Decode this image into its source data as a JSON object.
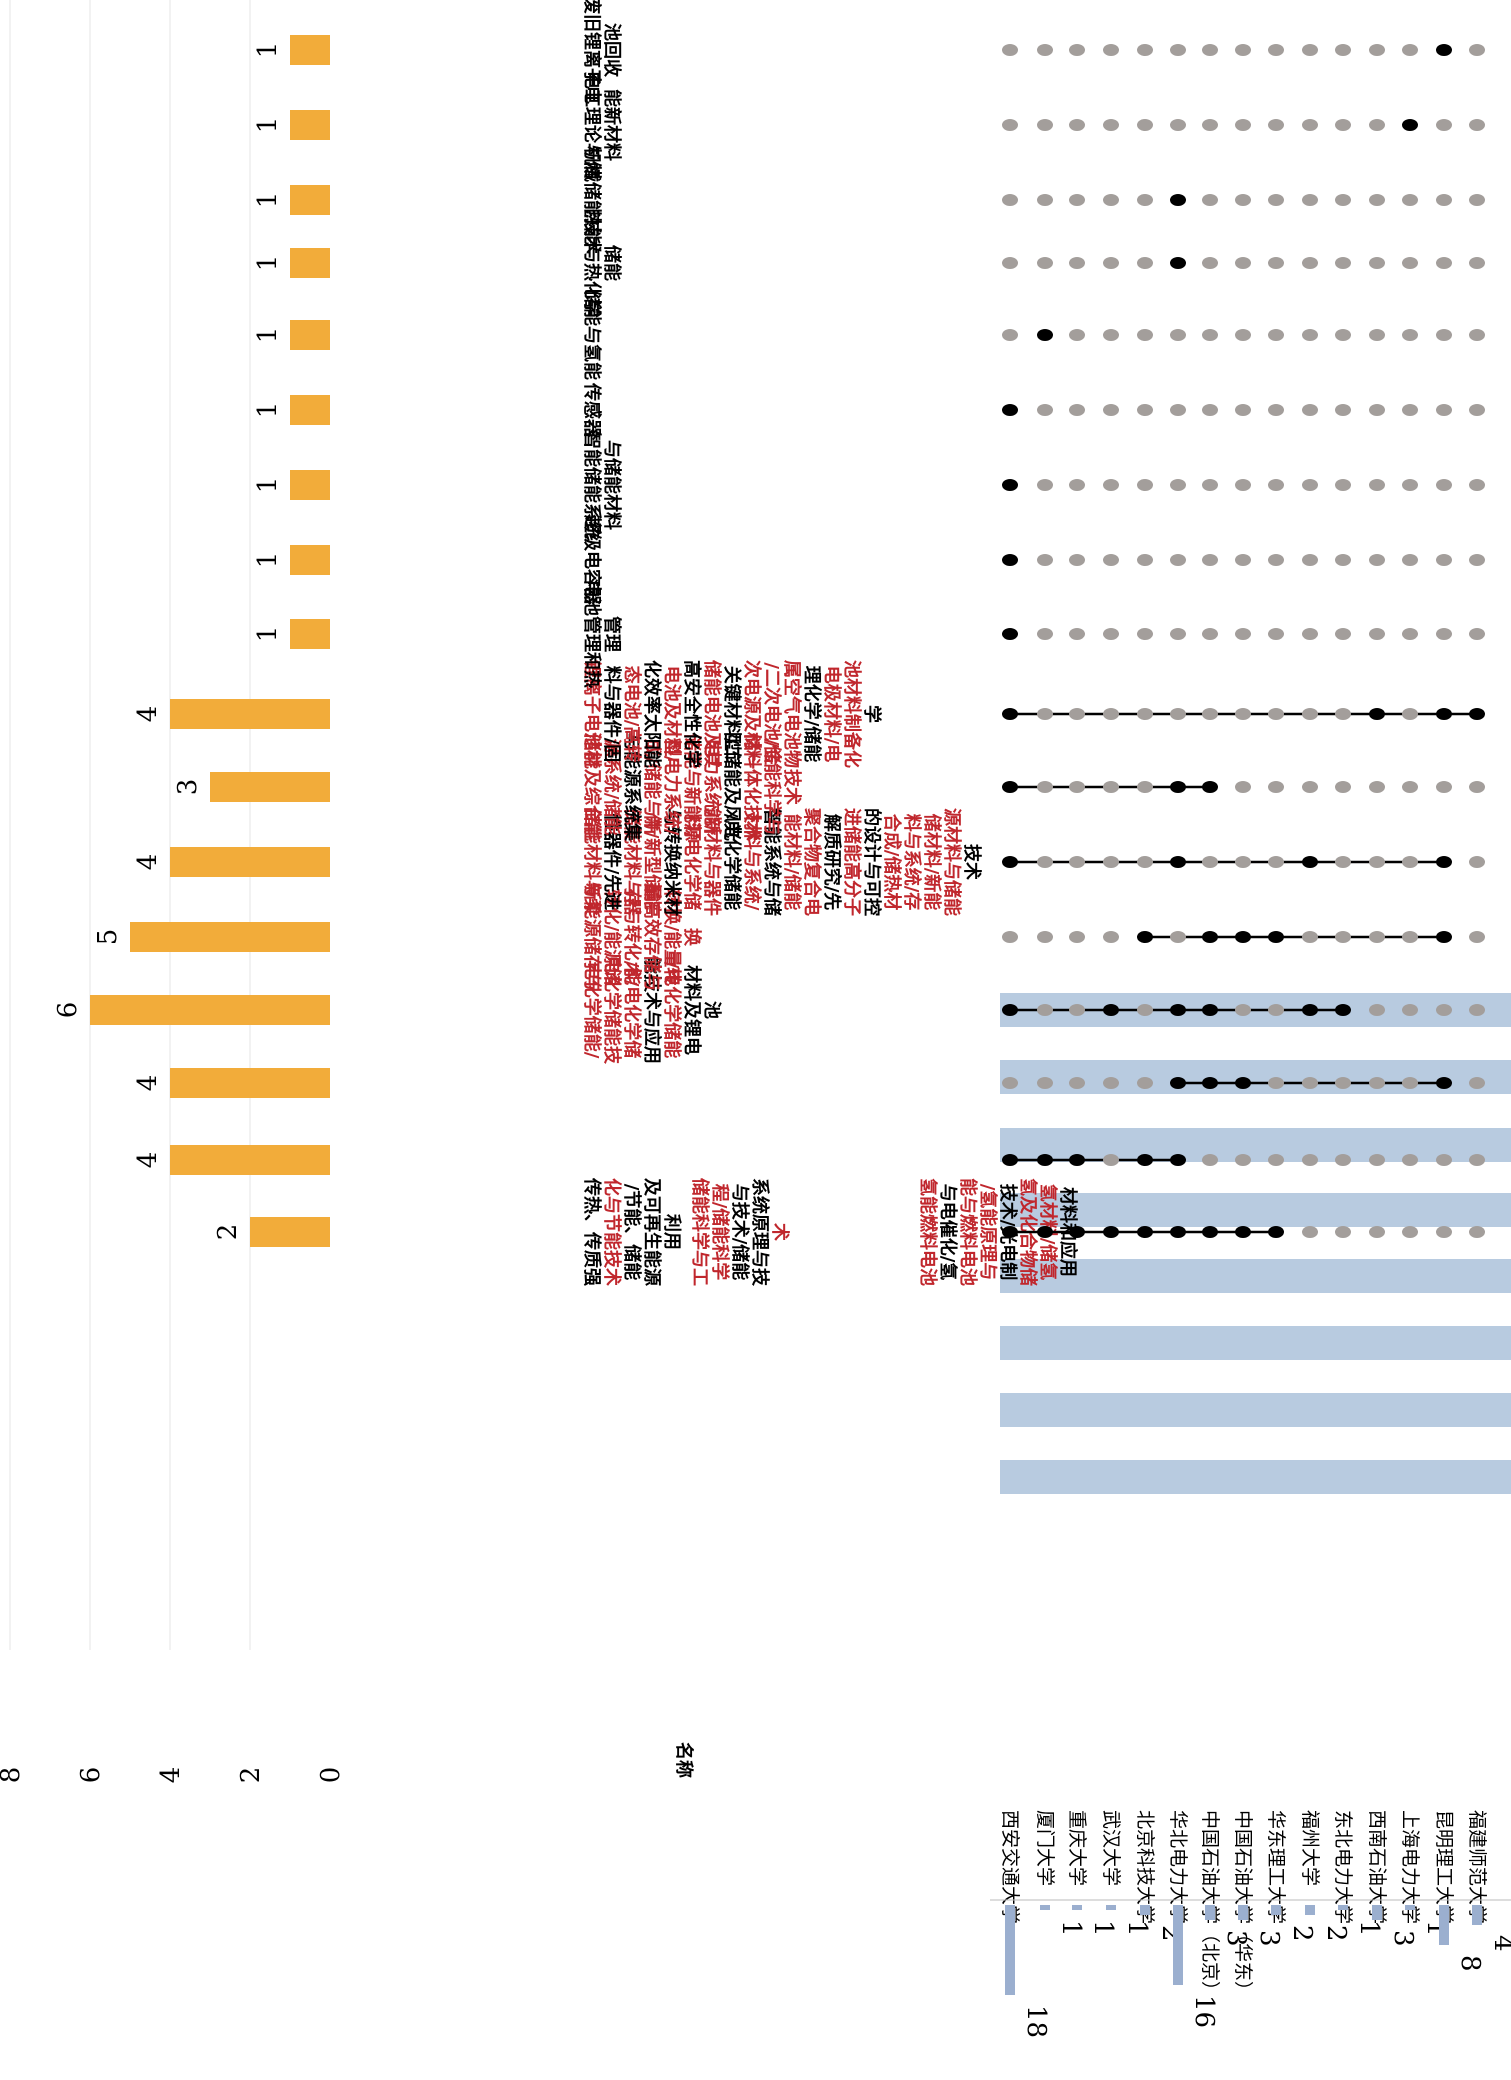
{
  "chart_data": {
    "type": "upset",
    "y_axis": {
      "ticks": [
        "0",
        "2",
        "4",
        "6",
        "8"
      ],
      "range": [
        0,
        8
      ]
    },
    "name_header": "名称",
    "accent_color": "#F2AC3A",
    "highlight_color": "#C0272D",
    "matrix_band_color": "#B8CBE0",
    "dot_active_color": "#000000",
    "dot_inactive_color": "#A39E9B",
    "set_bar_color": "#9BAFCF",
    "universities": [
      "西安交通大学",
      "厦门大学",
      "重庆大学",
      "武汉大学",
      "北京科技大学",
      "华北电力大学",
      "中国石油大学（北京）",
      "中国石油大学（华东）",
      "华东理工大学",
      "福州大学",
      "东北电力大学",
      "西南石油大学",
      "上海电力大学",
      "昆明理工大学",
      "福建师范大学"
    ],
    "set_sizes": [
      18,
      1,
      1,
      1,
      2,
      16,
      3,
      3,
      2,
      2,
      1,
      3,
      1,
      8,
      4
    ],
    "set_size_labels": [
      "18",
      "1",
      "1",
      "1",
      "2",
      "16",
      "3",
      "3",
      "2",
      "2",
      "1",
      "3",
      "1",
      "8",
      "4"
    ],
    "intersections": [
      {
        "count": 2,
        "count_label": "2",
        "members": [
          0,
          1,
          2,
          3,
          4,
          5,
          6,
          7,
          8
        ],
        "name_lines": [
          [
            [
              "传热、传质强",
              0
            ],
            [
              "化与节能技术",
              1
            ],
            [
              "/节能、储能",
              0
            ],
            [
              "及可再生能源",
              0
            ],
            [
              "利用",
              0
            ]
          ],
          [
            [
              "储能科学与工",
              1
            ],
            [
              "程/储能科学",
              1
            ],
            [
              "与技术/储能",
              0
            ],
            [
              "系统原理与技",
              0
            ],
            [
              "术",
              1
            ]
          ],
          [
            [
              "氢能燃料电池",
              1
            ],
            [
              "与电催化/氢",
              0
            ],
            [
              "能与燃料电池",
              1
            ],
            [
              "/氢能原理与",
              1
            ],
            [
              "技术/光电制",
              0
            ],
            [
              "氢及化合物储",
              1
            ],
            [
              "氢材料/储氢",
              1
            ],
            [
              "材料和应用",
              0
            ]
          ]
        ]
      },
      {
        "count": 4,
        "count_label": "4",
        "members": [
          0,
          1,
          2,
          4,
          5
        ],
        "name_lines": []
      },
      {
        "count": 4,
        "count_label": "4",
        "members": [
          5,
          6,
          7,
          13
        ],
        "name_lines": []
      },
      {
        "count": 6,
        "count_label": "6",
        "members": [
          0,
          3,
          5,
          6,
          9,
          10
        ],
        "name_lines": [
          [
            [
              "电化学储能/",
              1
            ],
            [
              "电化学储能技",
              1
            ],
            [
              "术/电化学储",
              1
            ],
            [
              "能技术与应用",
              0
            ],
            [
              "/电化学储能",
              1
            ],
            [
              "材料及锂电",
              0
            ],
            [
              "池",
              0
            ]
          ]
        ]
      },
      {
        "count": 5,
        "count_label": "5",
        "members": [
          4,
          6,
          7,
          8,
          13
        ],
        "name_lines": [
          [
            [
              "新能源储存与",
              1
            ],
            [
              "转化/能源储",
              1
            ],
            [
              "存与转化/能",
              1
            ],
            [
              "量高效存储与",
              1
            ],
            [
              "转换/能量转",
              1
            ],
            [
              "换",
              1
            ]
          ]
        ]
      },
      {
        "count": 4,
        "count_label": "4",
        "members": [
          0,
          5,
          9,
          13
        ],
        "name_lines": [
          [
            [
              "储能材料与柔",
              1
            ],
            [
              "性器件/先进",
              0
            ],
            [
              "储能材料与器",
              1
            ],
            [
              "件/新型储能",
              1
            ],
            [
              "与转换纳米材",
              0
            ],
            [
              "料/电化学储",
              1
            ],
            [
              "能材料与器件",
              1
            ],
            [
              "/电化学储能",
              0
            ],
            [
              "材料与系统/",
              1
            ],
            [
              "智能系统与储",
              0
            ],
            [
              "能材料/储能",
              1
            ],
            [
              "聚合物复合电",
              1
            ],
            [
              "解质研究/先",
              0
            ],
            [
              "进储能高分子",
              1
            ],
            [
              "的设计与可控",
              0
            ],
            [
              "合成/储热材",
              1
            ],
            [
              "料与系统/存",
              1
            ],
            [
              "储材料/新能",
              1
            ],
            [
              "源材料与储能",
              1
            ],
            [
              "技术",
              0
            ]
          ]
        ]
      },
      {
        "count": 3,
        "count_label": "3",
        "members": [
          0,
          5,
          6
        ],
        "name_lines": [
          [
            [
              "储能及综合能",
              1
            ],
            [
              "源系统/储能",
              1
            ],
            [
              "与能源系统集",
              0
            ],
            [
              "成/储能与新",
              1
            ],
            [
              "型电力系统/",
              1
            ],
            [
              "储能与新能源",
              1
            ],
            [
              "电力系统/新",
              1
            ],
            [
              "型储能及风光",
              0
            ],
            [
              "储一体化技术",
              1
            ],
            [
              "/储能科学与",
              1
            ],
            [
              "技术",
              1
            ]
          ]
        ]
      },
      {
        "count": 4,
        "count_label": "4",
        "members": [
          0,
          11,
          13,
          14
        ],
        "name_lines": [
          [
            [
              "锂离子电池材",
              1
            ],
            [
              "料与器件/固",
              0
            ],
            [
              "态电池/高转",
              1
            ],
            [
              "化效率太阳能",
              0
            ],
            [
              "电池及材料/",
              1
            ],
            [
              "高安全性化学",
              0
            ],
            [
              "储能电池及其",
              1
            ],
            [
              "关键材料/二",
              0
            ],
            [
              "次电源及材料",
              1
            ],
            [
              "/二次电池/金",
              1
            ],
            [
              "属空气电池物",
              1
            ],
            [
              "理化学/储能",
              0
            ],
            [
              "电极材料/电",
              1
            ],
            [
              "池材料制备化",
              1
            ],
            [
              "学",
              0
            ]
          ]
        ]
      },
      {
        "count": 1,
        "count_label": "1",
        "members": [
          0
        ],
        "name_lines": [
          [
            [
              "电池管理和热",
              0
            ],
            [
              "管理",
              0
            ]
          ]
        ]
      },
      {
        "count": 1,
        "count_label": "1",
        "members": [
          0
        ],
        "name_lines": [
          [
            [
              "超级电容器",
              0
            ]
          ]
        ]
      },
      {
        "count": 1,
        "count_label": "1",
        "members": [
          0
        ],
        "name_lines": [
          [
            [
              "智能储能系统",
              0
            ],
            [
              "与储能材料",
              0
            ]
          ]
        ]
      },
      {
        "count": 1,
        "count_label": "1",
        "members": [
          0
        ],
        "name_lines": [
          [
            [
              "传感器",
              0
            ]
          ]
        ]
      },
      {
        "count": 1,
        "count_label": "1",
        "members": [
          1
        ],
        "name_lines": [
          [
            [
              "储能与氢能",
              0
            ]
          ]
        ]
      },
      {
        "count": 1,
        "count_label": "1",
        "members": [
          5
        ],
        "name_lines": [
          [
            [
              "热能与热化学",
              0
            ],
            [
              "储能",
              0
            ]
          ]
        ]
      },
      {
        "count": 1,
        "count_label": "1",
        "members": [
          5
        ],
        "name_lines": [
          [
            [
              "机械储能技术",
              0
            ]
          ]
        ]
      },
      {
        "count": 1,
        "count_label": "1",
        "members": [
          12
        ],
        "name_lines": [
          [
            [
              "电工理论与储",
              0
            ],
            [
              "能新材料",
              0
            ]
          ]
        ]
      },
      {
        "count": 1,
        "count_label": "1",
        "members": [
          13
        ],
        "name_lines": [
          [
            [
              "废旧锂离子电",
              0
            ],
            [
              "池回收",
              0
            ]
          ]
        ]
      }
    ]
  }
}
